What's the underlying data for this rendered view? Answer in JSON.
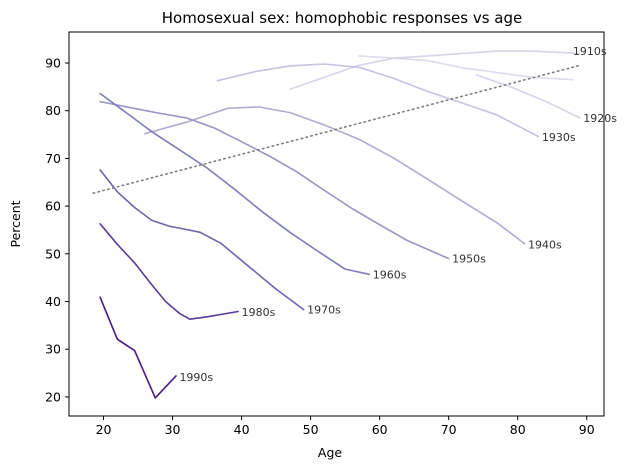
{
  "chart_data": {
    "type": "line",
    "title": "Homosexual sex: homophobic responses vs age",
    "xlabel": "Age",
    "ylabel": "Percent",
    "xlim": [
      15,
      92.5
    ],
    "ylim": [
      16,
      96.5
    ],
    "xticks": [
      20,
      30,
      40,
      50,
      60,
      70,
      80,
      90
    ],
    "yticks": [
      20,
      30,
      40,
      50,
      60,
      70,
      80,
      90
    ],
    "grid": false,
    "legend": "none; series labeled at line ends",
    "series": [
      {
        "name": "1910s",
        "color": "#dcdbec",
        "x": [
          57,
          62,
          67,
          72,
          77,
          82,
          88
        ],
        "y": [
          91.5,
          91,
          90.5,
          89,
          88,
          87,
          86.5
        ]
      },
      {
        "name": "1920s",
        "color": "#d5d4e9",
        "x": [
          47,
          52,
          57,
          62,
          67,
          72,
          77,
          82,
          89
        ],
        "y": [
          84.5,
          87,
          89.5,
          91,
          91.5,
          92,
          92.5,
          92.5,
          92
        ]
      },
      {
        "name": "1920s-b",
        "color": "#d5d4e9",
        "x": [
          74,
          79,
          84,
          89
        ],
        "y": [
          87.5,
          85,
          82,
          78.5
        ]
      },
      {
        "name": "1930s",
        "color": "#c4c3e0",
        "x": [
          36.5,
          42,
          47,
          52,
          57,
          62,
          67,
          72,
          77,
          83
        ],
        "y": [
          86.3,
          88.2,
          89.4,
          89.8,
          89.1,
          86.8,
          84,
          81.6,
          79.1,
          74.6
        ]
      },
      {
        "name": "1940s",
        "color": "#aeacd3",
        "x": [
          26,
          32,
          38,
          42.5,
          47,
          52,
          57,
          62,
          67,
          72,
          77,
          81
        ],
        "y": [
          75.2,
          77.6,
          80.5,
          80.8,
          79.6,
          77,
          74,
          70.1,
          65.6,
          61,
          56.5,
          52.1
        ]
      },
      {
        "name": "1950s",
        "color": "#9895c6",
        "x": [
          19.5,
          24,
          28,
          32,
          36,
          40,
          44,
          48,
          52,
          56,
          60,
          64,
          70
        ],
        "y": [
          81.9,
          80.6,
          79.5,
          78.5,
          76.4,
          73.5,
          70.5,
          67.2,
          63.3,
          59.5,
          56.1,
          52.8,
          49
        ]
      },
      {
        "name": "1960s",
        "color": "#7f7cb9",
        "x": [
          19.5,
          23,
          27,
          31,
          35,
          39,
          43,
          47,
          51,
          55,
          58.5
        ],
        "y": [
          83.6,
          79.9,
          75.6,
          71.8,
          68,
          63.5,
          58.8,
          54.5,
          50.6,
          46.8,
          45.7
        ]
      },
      {
        "name": "1970s",
        "color": "#6d64ad",
        "x": [
          19.5,
          22,
          24.5,
          27,
          29.5,
          32,
          34,
          37,
          41,
          45,
          49
        ],
        "y": [
          67.6,
          63,
          59.7,
          57,
          55.8,
          55.1,
          54.5,
          52.2,
          47.4,
          42.6,
          38.3
        ]
      },
      {
        "name": "1980s",
        "color": "#5a3c99",
        "x": [
          19.5,
          22,
          24.5,
          27,
          29,
          31,
          32.5,
          35,
          39.5
        ],
        "y": [
          56.3,
          52,
          48.1,
          43.5,
          40,
          37.5,
          36.3,
          36.8,
          37.9
        ]
      },
      {
        "name": "1990s",
        "color": "#4a1a87",
        "x": [
          19.5,
          22,
          24.5,
          27.5,
          30.5
        ],
        "y": [
          40.9,
          32.1,
          29.7,
          19.8,
          24.4
        ]
      },
      {
        "name": "trend",
        "color": "#808080",
        "dashed": true,
        "x": [
          18.5,
          89
        ],
        "y": [
          62.7,
          89.5
        ]
      }
    ],
    "labels": [
      {
        "text": "1910s",
        "x": 88,
        "y": 92.5
      },
      {
        "text": "1920s",
        "x": 89.5,
        "y": 78.5
      },
      {
        "text": "1930s",
        "x": 83.5,
        "y": 74.5
      },
      {
        "text": "1940s",
        "x": 81.5,
        "y": 52
      },
      {
        "text": "1950s",
        "x": 70.5,
        "y": 49
      },
      {
        "text": "1960s",
        "x": 59,
        "y": 45.7
      },
      {
        "text": "1970s",
        "x": 49.5,
        "y": 38.3
      },
      {
        "text": "1980s",
        "x": 40,
        "y": 37.8
      },
      {
        "text": "1990s",
        "x": 31,
        "y": 24.2
      }
    ]
  }
}
